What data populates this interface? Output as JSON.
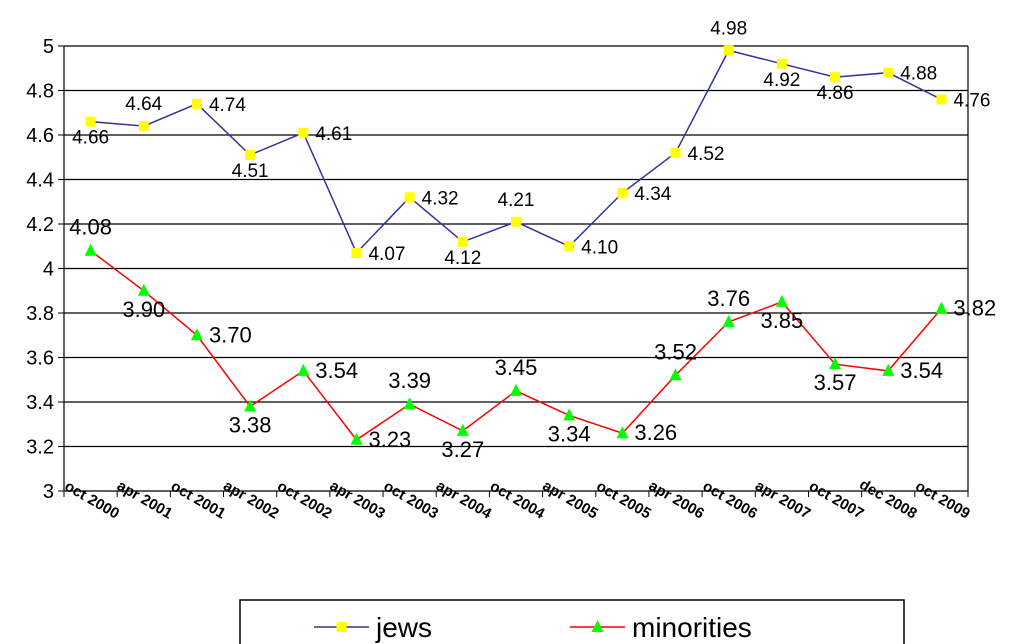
{
  "chart_data": {
    "type": "line",
    "categories": [
      "oct 2000",
      "apr 2001",
      "oct 2001",
      "apr 2002",
      "oct 2002",
      "apr 2003",
      "oct 2003",
      "apr 2004",
      "oct 2004",
      "apr 2005",
      "oct 2005",
      "apr 2006",
      "oct 2006",
      "apr 2007",
      "oct 2007",
      "dec 2008",
      "oct 2009"
    ],
    "series": [
      {
        "name": "jews",
        "color": "#33339a",
        "marker": "square",
        "marker_color": "#ffff00",
        "values": [
          4.66,
          4.64,
          4.74,
          4.51,
          4.61,
          4.07,
          4.32,
          4.12,
          4.21,
          4.1,
          4.34,
          4.52,
          4.98,
          4.92,
          4.86,
          4.88,
          4.76
        ],
        "labels": [
          "4.66",
          "4.64",
          "4.74",
          "4.51",
          "4.61",
          "4.07",
          "4.32",
          "4.12",
          "4.21",
          "4.10",
          "4.34",
          "4.52",
          "4.98",
          "4.92",
          "4.86",
          "4.88",
          "4.76"
        ]
      },
      {
        "name": "minorities",
        "color": "#ff0000",
        "marker": "triangle",
        "marker_color": "#00ff00",
        "values": [
          4.08,
          3.9,
          3.7,
          3.38,
          3.54,
          3.23,
          3.39,
          3.27,
          3.45,
          3.34,
          3.26,
          3.52,
          3.76,
          3.85,
          3.57,
          3.54,
          3.82
        ],
        "labels": [
          "4.08",
          "3.90",
          "3.70",
          "3.38",
          "3.54",
          "3.23",
          "3.39",
          "3.27",
          "3.45",
          "3.34",
          "3.26",
          "3.52",
          "3.76",
          "3.85",
          "3.57",
          "3.54",
          "3.82"
        ]
      }
    ],
    "ylim": [
      3,
      5
    ],
    "yticks": [
      "3",
      "3.2",
      "3.4",
      "3.6",
      "3.8",
      "4",
      "4.2",
      "4.4",
      "4.6",
      "4.8",
      "5"
    ],
    "grid": true,
    "legend": "bottom",
    "title": "",
    "xlabel": "",
    "ylabel": ""
  }
}
